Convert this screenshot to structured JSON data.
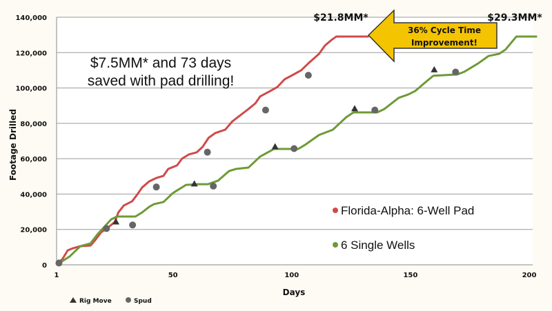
{
  "chart_data": {
    "type": "line",
    "title": "",
    "xlabel": "Days",
    "ylabel": "Footage Drilled",
    "xlim": [
      1,
      200
    ],
    "ylim": [
      0,
      140000
    ],
    "x_ticks": [
      "1",
      "50",
      "100",
      "150",
      "200"
    ],
    "y_ticks": [
      "0",
      "20,000",
      "40,000",
      "60,000",
      "80,000",
      "100,000",
      "120,000",
      "140,000"
    ],
    "grid": "horizontal",
    "legend_placement": "bottom-right",
    "series": [
      {
        "name": "Florida-Alpha: 6-Well Pad",
        "color": "#d04a4a",
        "x": [
          1,
          3.6,
          5.7,
          8,
          10.9,
          15.3,
          17.3,
          19.7,
          22.6,
          25.5,
          27,
          29.3,
          32.8,
          35,
          37,
          40,
          43,
          46,
          48,
          51.7,
          53.8,
          56.7,
          60,
          62.5,
          65,
          67.8,
          72,
          75,
          78,
          81.8,
          84.7,
          86.7,
          91,
          94,
          97,
          99.8,
          104,
          107,
          111.5,
          114,
          116.7,
          118.8,
          132.5
        ],
        "y": [
          0,
          3500,
          8200,
          9400,
          10500,
          10900,
          14000,
          18300,
          21000,
          24200,
          29600,
          33500,
          35900,
          39800,
          43700,
          47200,
          49100,
          50300,
          54200,
          56200,
          60000,
          62400,
          63600,
          66700,
          71800,
          74500,
          76400,
          81100,
          84200,
          88100,
          91300,
          95200,
          98300,
          100600,
          104900,
          106900,
          110000,
          113900,
          119300,
          124000,
          127100,
          129100,
          129100
        ]
      },
      {
        "name": "6 Single Wells",
        "color": "#6e9a36",
        "x": [
          1,
          6.5,
          11,
          15.3,
          18.2,
          24,
          26.4,
          34.2,
          37,
          40,
          42,
          46,
          50,
          55.5,
          60.5,
          64.8,
          69,
          73.6,
          76.5,
          81.8,
          86.7,
          92.5,
          102.7,
          105.7,
          111.5,
          117.3,
          123,
          126,
          136,
          139,
          145,
          149,
          152,
          156.7,
          159.6,
          169.8,
          172.7,
          178.5,
          182.9,
          187.3,
          190,
          194.6,
          203.3
        ],
        "y": [
          0,
          4700,
          10500,
          12100,
          17200,
          25700,
          27300,
          27300,
          29600,
          32800,
          34300,
          35500,
          40600,
          45200,
          45600,
          45600,
          47600,
          53000,
          54200,
          55000,
          61200,
          65500,
          65500,
          67900,
          73400,
          76400,
          83500,
          86200,
          86200,
          88100,
          94400,
          96300,
          98300,
          103700,
          106900,
          107700,
          109200,
          113900,
          118100,
          119300,
          121700,
          129100,
          129100
        ]
      }
    ],
    "markers": {
      "rig_move": {
        "label": "Rig Move",
        "points": [
          [
            26,
            24000
          ],
          [
            59,
            45500
          ],
          [
            93,
            66500
          ],
          [
            126.5,
            88000
          ],
          [
            160,
            110000
          ]
        ]
      },
      "spud": {
        "label": "Spud",
        "points": [
          [
            2,
            1000
          ],
          [
            22,
            20500
          ],
          [
            43,
            44000
          ],
          [
            64.5,
            63700
          ],
          [
            89,
            87500
          ],
          [
            107,
            107200
          ],
          [
            33,
            22500
          ],
          [
            67,
            44500
          ],
          [
            101,
            65700
          ],
          [
            135,
            87500
          ],
          [
            169,
            109000
          ]
        ]
      }
    },
    "annotations": {
      "savings_line1": "$7.5MM* and 73 days",
      "savings_line2": "saved with pad drilling!",
      "pad_cost": "$21.8MM*",
      "single_cost": "$29.3MM*",
      "arrow_line1": "36% Cycle Time",
      "arrow_line2": "Improvement!",
      "arrow_color": "#f5c400"
    }
  }
}
